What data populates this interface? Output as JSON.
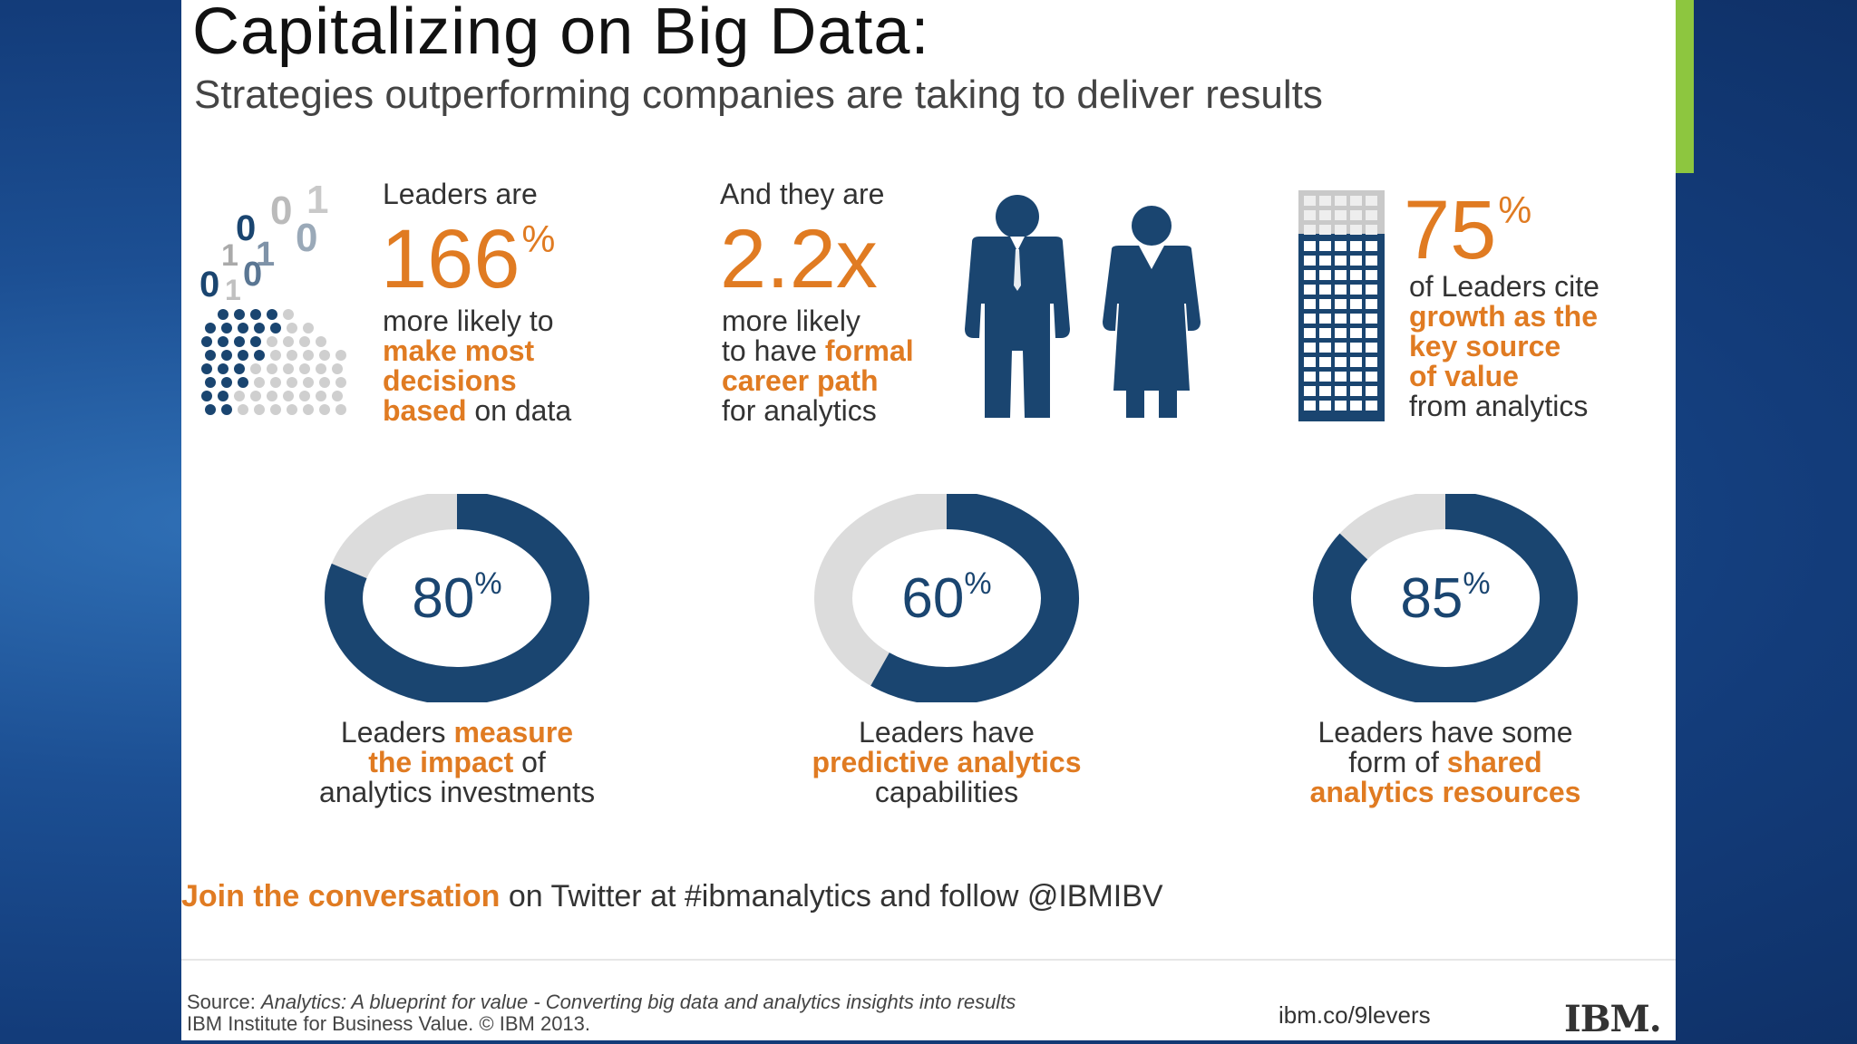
{
  "header": {
    "title": "Capitalizing on Big Data:",
    "subtitle": "Strategies outperforming companies are taking to deliver results"
  },
  "stats": [
    {
      "lead": "Leaders are",
      "value": "166",
      "unit": "%",
      "line1": "more likely to",
      "hl1": "make most",
      "hl2": "decisions",
      "hl3": "based",
      "tail": "on data"
    },
    {
      "lead": "And they are",
      "value": "2.2x",
      "line1": "more likely",
      "line2_pre": "to have",
      "hl1": "formal",
      "hl2": "career path",
      "tail": "for analytics"
    },
    {
      "value": "75",
      "unit": "%",
      "line1": "of Leaders cite",
      "hl1": "growth as the",
      "hl2": "key source",
      "hl3": "of value",
      "tail": "from analytics"
    }
  ],
  "rings": [
    {
      "percent": 80,
      "label": "80",
      "unit": "%",
      "pre": "Leaders",
      "hl1": "measure",
      "hl2": "the impact",
      "mid": "of",
      "post": "analytics investments"
    },
    {
      "percent": 60,
      "label": "60",
      "unit": "%",
      "pre": "Leaders have",
      "hl1": "predictive analytics",
      "post": "capabilities"
    },
    {
      "percent": 85,
      "label": "85",
      "unit": "%",
      "pre": "Leaders have some",
      "mid": "form of",
      "hl1": "shared",
      "hl2": "analytics resources"
    }
  ],
  "social": {
    "highlight": "Join the conversation",
    "text": "on Twitter at #ibmanalytics and follow @IBMIBV"
  },
  "footer": {
    "source_label": "Source:",
    "source_title": "Analytics: A blueprint for value - Converting big data and analytics insights into results",
    "source_org": "IBM Institute for Business Value. © IBM 2013.",
    "url": "ibm.co/9levers",
    "logo": "IBM."
  },
  "colors": {
    "navy": "#1a4570",
    "orange": "#e07b22",
    "grey_ring": "#dcdcdc",
    "accent": "#8dc63f"
  },
  "icons": {
    "data": "binary-data-icon",
    "people": "business-people-icon",
    "building": "office-building-icon"
  }
}
